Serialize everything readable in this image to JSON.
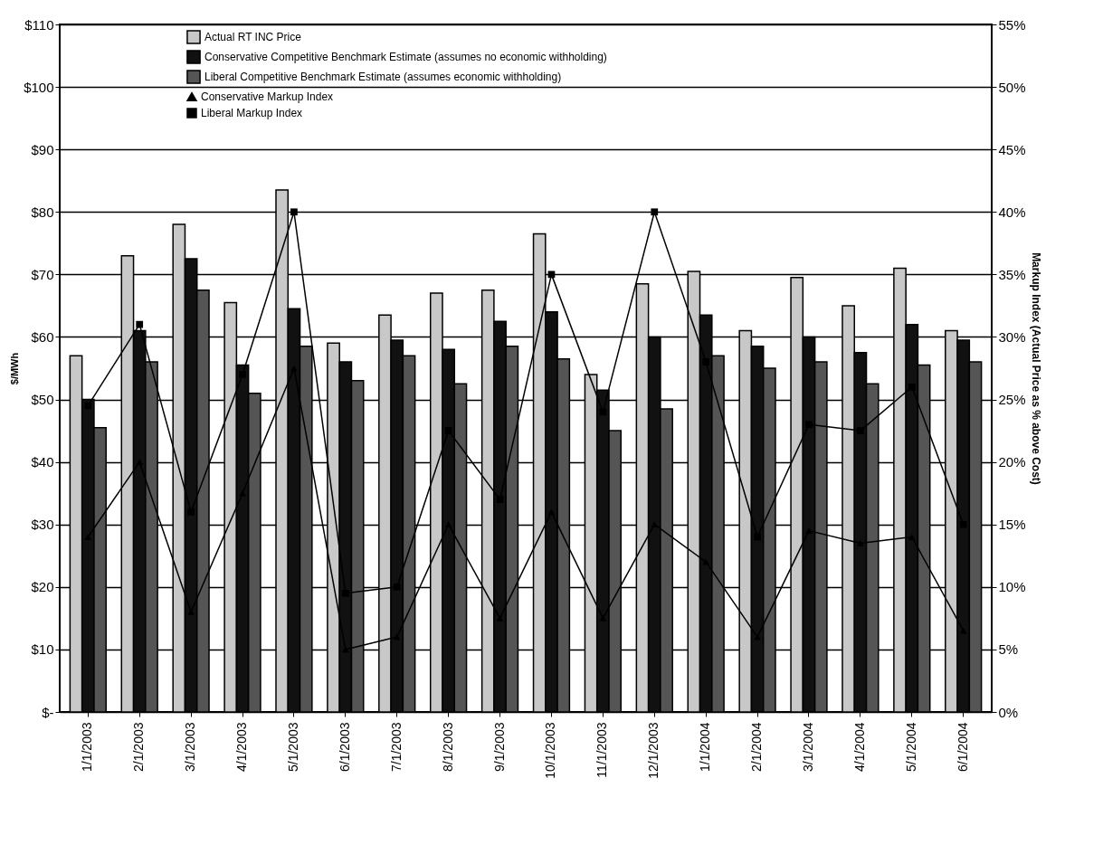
{
  "chart_data": {
    "type": "bar",
    "ylabel": "$/MWh",
    "y2label": "Markup Index (Actual Price as % above Cost)",
    "categories": [
      "1/1/2003",
      "2/1/2003",
      "3/1/2003",
      "4/1/2003",
      "5/1/2003",
      "6/1/2003",
      "7/1/2003",
      "8/1/2003",
      "9/1/2003",
      "10/1/2003",
      "11/1/2003",
      "12/1/2003",
      "1/1/2004",
      "2/1/2004",
      "3/1/2004",
      "4/1/2004",
      "5/1/2004",
      "6/1/2004"
    ],
    "series": [
      {
        "name": "Actual RT INC Price",
        "color": "#c8c8c8",
        "values": [
          57,
          73,
          78,
          65.5,
          83.5,
          59,
          63.5,
          67,
          67.5,
          76.5,
          54,
          68.5,
          70.5,
          61,
          69.5,
          65,
          71,
          61
        ]
      },
      {
        "name": "Conservative Competitive Benchmark Estimate (assumes no economic withholding)",
        "color": "#111111",
        "values": [
          50,
          61,
          72.5,
          55.5,
          64.5,
          56,
          59.5,
          58,
          62.5,
          64,
          51.5,
          60,
          63.5,
          58.5,
          60,
          57.5,
          62,
          59.5
        ]
      },
      {
        "name": "Liberal Competitive Benchmark Estimate (assumes economic withholding)",
        "color": "#555555",
        "values": [
          45.5,
          56,
          67.5,
          51,
          58.5,
          53,
          57,
          52.5,
          58.5,
          56.5,
          45,
          48.5,
          57,
          55,
          56,
          52.5,
          55.5,
          56
        ]
      },
      {
        "name": "Conservative Markup Index",
        "type": "line",
        "axis": "y2",
        "marker": "triangle",
        "color": "#000000",
        "values": [
          14,
          20,
          8,
          17.5,
          27.5,
          5,
          6,
          15,
          7.5,
          16,
          7.5,
          15,
          12,
          6,
          14.5,
          13.5,
          14,
          6.5
        ]
      },
      {
        "name": "Liberal Markup Index",
        "type": "line",
        "axis": "y2",
        "marker": "square",
        "color": "#000000",
        "values": [
          24.5,
          31,
          16,
          27,
          40,
          9.5,
          10,
          22.5,
          17,
          35,
          24,
          40,
          28,
          14,
          23,
          22.5,
          26,
          15
        ]
      }
    ],
    "ylim": [
      0,
      110
    ],
    "yticks": [
      {
        "value": 0,
        "label": "$-"
      },
      {
        "value": 10,
        "label": "$10"
      },
      {
        "value": 20,
        "label": "$20"
      },
      {
        "value": 30,
        "label": "$30"
      },
      {
        "value": 40,
        "label": "$40"
      },
      {
        "value": 50,
        "label": "$50"
      },
      {
        "value": 60,
        "label": "$60"
      },
      {
        "value": 70,
        "label": "$70"
      },
      {
        "value": 80,
        "label": "$80"
      },
      {
        "value": 90,
        "label": "$90"
      },
      {
        "value": 100,
        "label": "$100"
      },
      {
        "value": 110,
        "label": "$110"
      }
    ],
    "y2lim": [
      0,
      55
    ],
    "y2ticks": [
      {
        "value": 0,
        "label": "0%"
      },
      {
        "value": 5,
        "label": "5%"
      },
      {
        "value": 10,
        "label": "10%"
      },
      {
        "value": 15,
        "label": "15%"
      },
      {
        "value": 20,
        "label": "20%"
      },
      {
        "value": 25,
        "label": "25%"
      },
      {
        "value": 30,
        "label": "30%"
      },
      {
        "value": 35,
        "label": "35%"
      },
      {
        "value": 40,
        "label": "40%"
      },
      {
        "value": 45,
        "label": "45%"
      },
      {
        "value": 50,
        "label": "50%"
      },
      {
        "value": 55,
        "label": "55%"
      }
    ],
    "grid": "y",
    "legend": "top left"
  }
}
